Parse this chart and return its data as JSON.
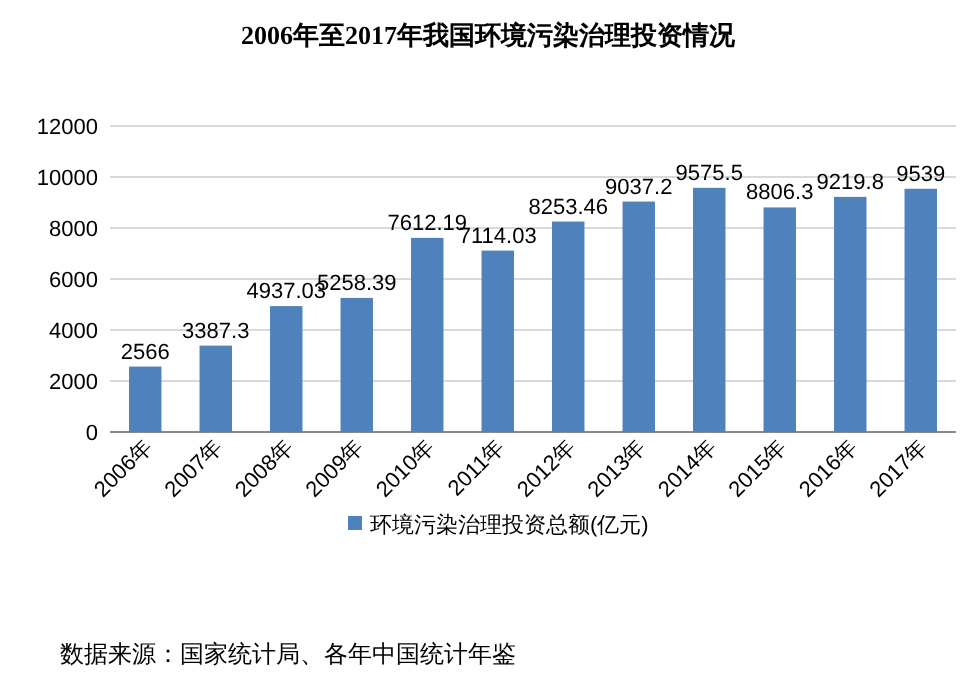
{
  "chart_data": {
    "type": "bar",
    "title": "2006年至2017年我国环境污染治理投资情况",
    "categories": [
      "2006年",
      "2007年",
      "2008年",
      "2009年",
      "2010年",
      "2011年",
      "2012年",
      "2013年",
      "2014年",
      "2015年",
      "2016年",
      "2017年"
    ],
    "series": [
      {
        "name": "环境污染治理投资总额(亿元)",
        "color": "#4f81bd",
        "values": [
          2566,
          3387.3,
          4937.03,
          5258.39,
          7612.19,
          7114.03,
          8253.46,
          9037.2,
          9575.5,
          8806.3,
          9219.8,
          9539
        ]
      }
    ],
    "ylim": [
      0,
      12000
    ],
    "yticks": [
      0,
      2000,
      4000,
      6000,
      8000,
      10000,
      12000
    ],
    "grid": "y",
    "legend": "bottom",
    "data_labels": true,
    "annotations": [
      "数据来源：国家统计局、各年中国统计年鉴"
    ]
  }
}
